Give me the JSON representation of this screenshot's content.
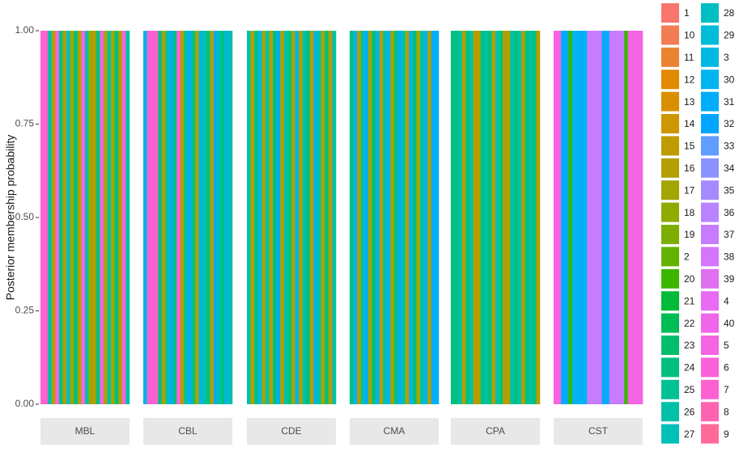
{
  "chart_data": {
    "type": "structure",
    "ylabel": "Posterior membership probability",
    "ylim": [
      0,
      1
    ],
    "yticks": [
      {
        "value": 0,
        "label": "0.00"
      },
      {
        "value": 0.25,
        "label": "0.25"
      },
      {
        "value": 0.5,
        "label": "0.50"
      },
      {
        "value": 0.75,
        "label": "0.75"
      },
      {
        "value": 1,
        "label": "1.00"
      }
    ],
    "legend": [
      {
        "name": "1",
        "color": "#F8766D"
      },
      {
        "name": "10",
        "color": "#F27D52"
      },
      {
        "name": "11",
        "color": "#EA8331"
      },
      {
        "name": "12",
        "color": "#E18A00"
      },
      {
        "name": "13",
        "color": "#D89000"
      },
      {
        "name": "14",
        "color": "#CE9700"
      },
      {
        "name": "15",
        "color": "#C09B00"
      },
      {
        "name": "16",
        "color": "#B39F00"
      },
      {
        "name": "17",
        "color": "#A3A500"
      },
      {
        "name": "18",
        "color": "#91AA00"
      },
      {
        "name": "19",
        "color": "#7CAE00"
      },
      {
        "name": "2",
        "color": "#64B200"
      },
      {
        "name": "20",
        "color": "#3DB600"
      },
      {
        "name": "21",
        "color": "#00BA38"
      },
      {
        "name": "22",
        "color": "#00BC55"
      },
      {
        "name": "23",
        "color": "#00BE6C"
      },
      {
        "name": "24",
        "color": "#00C080"
      },
      {
        "name": "25",
        "color": "#00C194"
      },
      {
        "name": "26",
        "color": "#00C1A7"
      },
      {
        "name": "27",
        "color": "#00C0B8"
      },
      {
        "name": "28",
        "color": "#00BFC4"
      },
      {
        "name": "29",
        "color": "#00BCD8"
      },
      {
        "name": "3",
        "color": "#00B9E3"
      },
      {
        "name": "30",
        "color": "#00B4EF"
      },
      {
        "name": "31",
        "color": "#00ADFA"
      },
      {
        "name": "32",
        "color": "#00A5FF"
      },
      {
        "name": "33",
        "color": "#619CFF"
      },
      {
        "name": "34",
        "color": "#8B93FF"
      },
      {
        "name": "35",
        "color": "#A58AFF"
      },
      {
        "name": "36",
        "color": "#B983FF"
      },
      {
        "name": "37",
        "color": "#C77CFF"
      },
      {
        "name": "38",
        "color": "#D575FE"
      },
      {
        "name": "39",
        "color": "#E16FF1"
      },
      {
        "name": "4",
        "color": "#E76BF3"
      },
      {
        "name": "40",
        "color": "#F066EA"
      },
      {
        "name": "5",
        "color": "#F564E3"
      },
      {
        "name": "6",
        "color": "#FA62DB"
      },
      {
        "name": "7",
        "color": "#FD61D1"
      },
      {
        "name": "8",
        "color": "#FF64B0"
      },
      {
        "name": "9",
        "color": "#FF6A98"
      }
    ],
    "panels": [
      {
        "name": "MBL",
        "clusters": [
          "7",
          "7",
          "26",
          "16",
          "5",
          "24",
          "16",
          "28",
          "17",
          "24",
          "16",
          "5",
          "26",
          "17",
          "16",
          "24",
          "5",
          "16",
          "26",
          "17",
          "24",
          "16",
          "5",
          "26"
        ],
        "values": [
          1,
          1,
          1,
          1,
          1,
          1,
          1,
          1,
          1,
          1,
          1,
          1,
          1,
          1,
          1,
          1,
          1,
          1,
          1,
          1,
          1,
          1,
          1,
          1
        ]
      },
      {
        "name": "CBL",
        "clusters": [
          "30",
          "7",
          "7",
          "7",
          "24",
          "16",
          "26",
          "31",
          "24",
          "7",
          "16",
          "26",
          "31",
          "24",
          "17",
          "30",
          "26",
          "24",
          "16",
          "31",
          "26",
          "24",
          "30",
          "26"
        ],
        "values": [
          1,
          1,
          1,
          1,
          1,
          1,
          1,
          1,
          1,
          1,
          1,
          1,
          1,
          1,
          1,
          1,
          1,
          1,
          1,
          1,
          1,
          1,
          1,
          1
        ]
      },
      {
        "name": "CDE",
        "clusters": [
          "26",
          "16",
          "24",
          "30",
          "17",
          "26",
          "16",
          "24",
          "31",
          "16",
          "26",
          "24",
          "17",
          "30",
          "16",
          "26",
          "24",
          "16",
          "30",
          "26",
          "17",
          "24",
          "16",
          "26"
        ],
        "values": [
          1,
          1,
          1,
          1,
          1,
          1,
          1,
          1,
          1,
          1,
          1,
          1,
          1,
          1,
          1,
          1,
          1,
          1,
          1,
          1,
          1,
          1,
          1,
          1
        ]
      },
      {
        "name": "CMA",
        "clusters": [
          "24",
          "30",
          "16",
          "26",
          "31",
          "17",
          "24",
          "30",
          "16",
          "26",
          "30",
          "17",
          "24",
          "31",
          "26",
          "16",
          "30",
          "24",
          "17",
          "26",
          "30",
          "16",
          "31",
          "31"
        ],
        "values": [
          1,
          1,
          1,
          1,
          1,
          1,
          1,
          1,
          1,
          1,
          1,
          1,
          1,
          1,
          1,
          1,
          1,
          1,
          1,
          1,
          1,
          1,
          1,
          1
        ]
      },
      {
        "name": "CPA",
        "clusters": [
          "24",
          "24",
          "26",
          "16",
          "24",
          "26",
          "16",
          "16",
          "24",
          "26",
          "24",
          "16",
          "26",
          "24",
          "16",
          "16",
          "26",
          "24",
          "26",
          "16",
          "24",
          "26",
          "24",
          "16"
        ],
        "values": [
          1,
          1,
          1,
          1,
          1,
          1,
          1,
          1,
          1,
          1,
          1,
          1,
          1,
          1,
          1,
          1,
          1,
          1,
          1,
          1,
          1,
          1,
          1,
          1
        ]
      },
      {
        "name": "CST",
        "clusters": [
          "5",
          "5",
          "31",
          "31",
          "20",
          "30",
          "30",
          "31",
          "30",
          "37",
          "37",
          "37",
          "37",
          "31",
          "31",
          "37",
          "37",
          "37",
          "37",
          "20",
          "5",
          "5",
          "5",
          "5"
        ],
        "values": [
          1,
          1,
          1,
          1,
          1,
          1,
          1,
          1,
          1,
          1,
          1,
          1,
          1,
          1,
          1,
          1,
          1,
          1,
          1,
          1,
          1,
          1,
          1,
          1
        ]
      }
    ]
  }
}
